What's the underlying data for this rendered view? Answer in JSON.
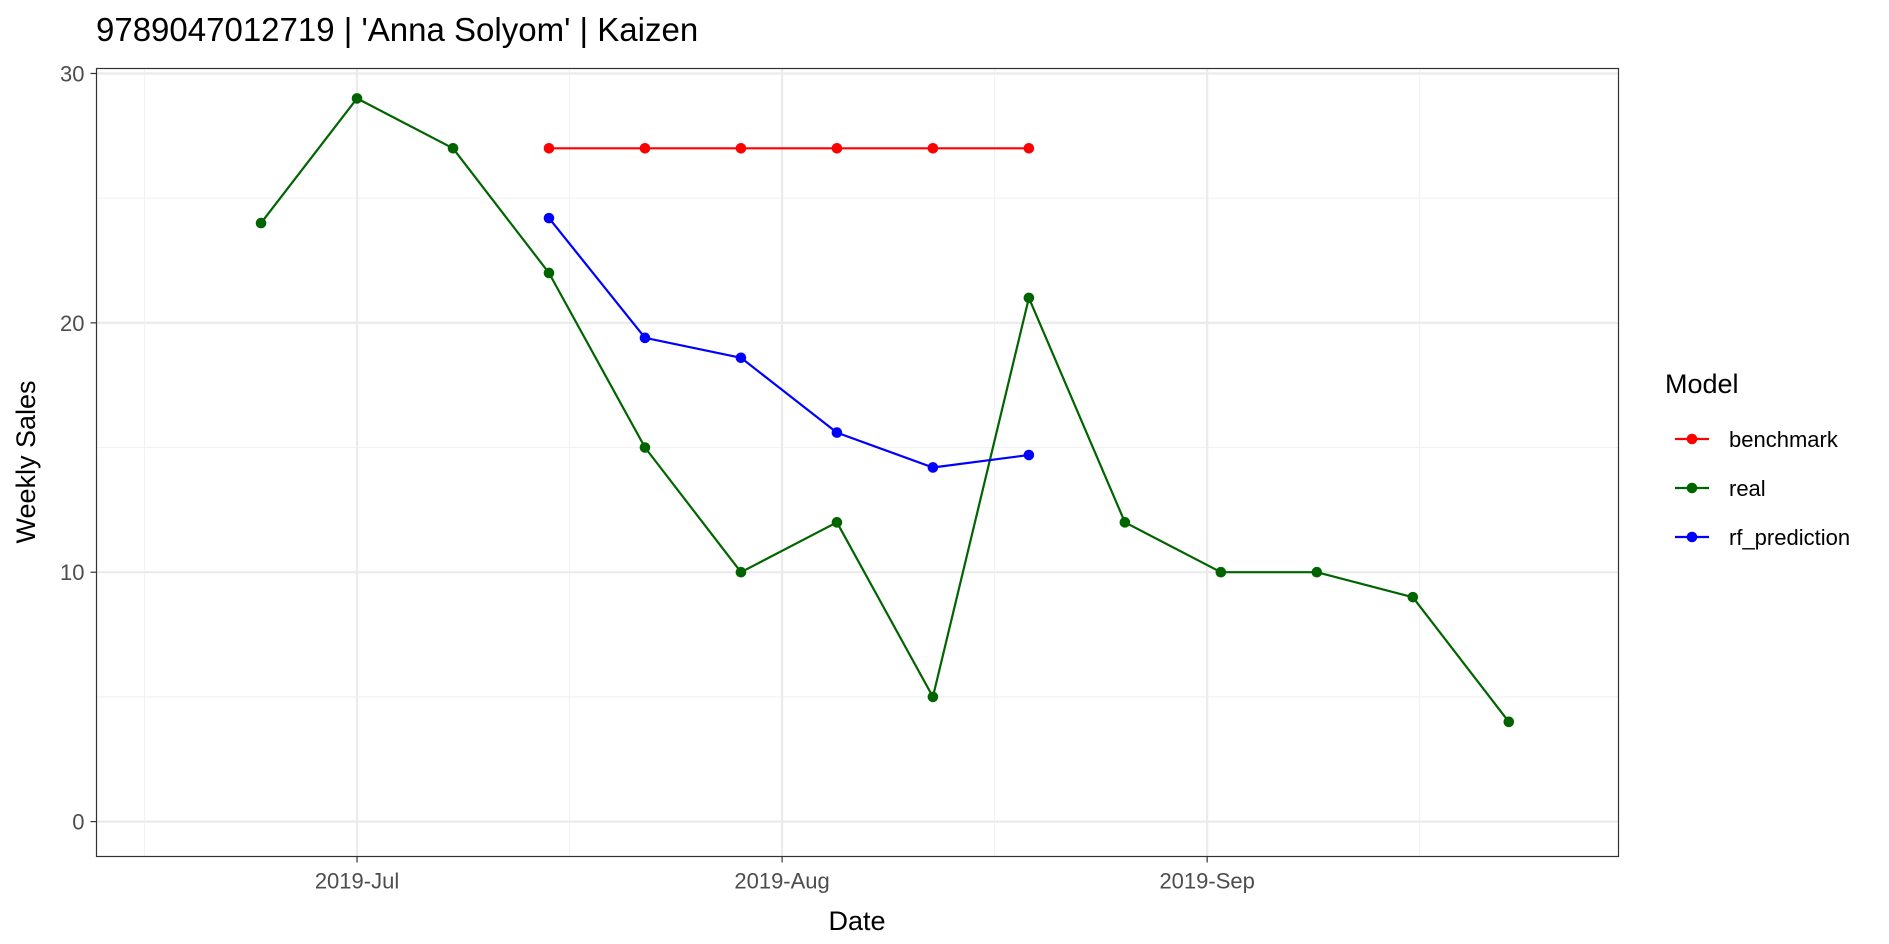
{
  "chart_data": {
    "type": "line",
    "title": "9789047012719 | 'Anna Solyom' | Kaizen",
    "xlabel": "Date",
    "ylabel": "Weekly Sales",
    "xlim": [
      "2019-06-12",
      "2019-10-01"
    ],
    "ylim": [
      -1.4,
      30.2
    ],
    "x_ticks": [
      {
        "date": "2019-07-01",
        "label": "2019-Jul"
      },
      {
        "date": "2019-08-01",
        "label": "2019-Aug"
      },
      {
        "date": "2019-09-01",
        "label": "2019-Sep"
      }
    ],
    "y_ticks": [
      0,
      10,
      20,
      30
    ],
    "y_tick_labels": [
      "0",
      "10",
      "20",
      "30"
    ],
    "grid": true,
    "legend": {
      "title": "Model",
      "position": "right"
    },
    "series": [
      {
        "name": "benchmark",
        "color": "#ff0000",
        "points": [
          {
            "x": "2019-07-15",
            "y": 27
          },
          {
            "x": "2019-07-22",
            "y": 27
          },
          {
            "x": "2019-07-29",
            "y": 27
          },
          {
            "x": "2019-08-05",
            "y": 27
          },
          {
            "x": "2019-08-12",
            "y": 27
          },
          {
            "x": "2019-08-19",
            "y": 27
          }
        ]
      },
      {
        "name": "real",
        "color": "#006400",
        "points": [
          {
            "x": "2019-06-24",
            "y": 24
          },
          {
            "x": "2019-07-01",
            "y": 29
          },
          {
            "x": "2019-07-08",
            "y": 27
          },
          {
            "x": "2019-07-15",
            "y": 22
          },
          {
            "x": "2019-07-22",
            "y": 15
          },
          {
            "x": "2019-07-29",
            "y": 10
          },
          {
            "x": "2019-08-05",
            "y": 12
          },
          {
            "x": "2019-08-12",
            "y": 5
          },
          {
            "x": "2019-08-19",
            "y": 21
          },
          {
            "x": "2019-08-26",
            "y": 12
          },
          {
            "x": "2019-09-02",
            "y": 10
          },
          {
            "x": "2019-09-09",
            "y": 10
          },
          {
            "x": "2019-09-16",
            "y": 9
          },
          {
            "x": "2019-09-23",
            "y": 4
          }
        ]
      },
      {
        "name": "rf_prediction",
        "color": "#0000ff",
        "points": [
          {
            "x": "2019-07-15",
            "y": 24.2
          },
          {
            "x": "2019-07-22",
            "y": 19.4
          },
          {
            "x": "2019-07-29",
            "y": 18.6
          },
          {
            "x": "2019-08-05",
            "y": 15.6
          },
          {
            "x": "2019-08-12",
            "y": 14.2
          },
          {
            "x": "2019-08-19",
            "y": 14.7
          }
        ]
      }
    ]
  }
}
